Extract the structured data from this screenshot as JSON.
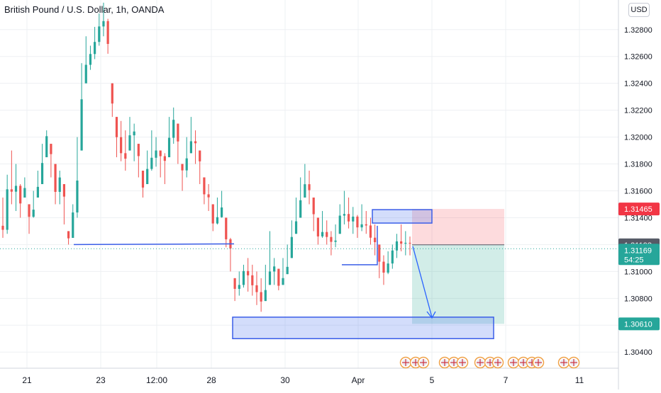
{
  "header": {
    "symbol_title": "British Pound / U.S. Dollar, 1h, OANDA",
    "currency_button": "USD"
  },
  "colors": {
    "up": "#26a69a",
    "down": "#ef5350",
    "box_blue": "#3b5ee8",
    "box_fill": "rgba(80,120,240,0.25)",
    "stop_zone": "rgba(242,54,69,0.18)",
    "target_zone": "rgba(8,153,129,0.18)",
    "current_tag": "#26a69a",
    "stop_tag": "#f23645",
    "entry_tag": "#555a66"
  },
  "chart_data": {
    "type": "candlestick",
    "ylim": [
      1.3028,
      1.3302
    ],
    "y_ticks": [
      "1.30400",
      "1.30600",
      "1.30800",
      "1.31000",
      "1.31200",
      "1.31400",
      "1.31600",
      "1.31800",
      "1.32000",
      "1.32200",
      "1.32400",
      "1.32600",
      "1.32800"
    ],
    "x_ticks": [
      "21",
      "23",
      "12:00",
      "28",
      "30",
      "Apr",
      "5",
      "7",
      "11"
    ],
    "price_tags": {
      "stop": "1.31465",
      "entry": "1.31198",
      "current": "1.31169",
      "countdown": "54:25",
      "target": "1.30610"
    },
    "path_points": [
      [
        1.3155,
        1.3125
      ],
      [
        1.3172,
        1.3128
      ],
      [
        1.319,
        1.315
      ],
      [
        1.318,
        1.3145
      ],
      [
        1.3165,
        1.314
      ],
      [
        1.317,
        1.3155
      ],
      [
        1.315,
        1.3128
      ],
      [
        1.316,
        1.314
      ],
      [
        1.3175,
        1.3155
      ],
      [
        1.3195,
        1.3165
      ],
      [
        1.3205,
        1.3185
      ],
      [
        1.3195,
        1.317
      ],
      [
        1.318,
        1.315
      ],
      [
        1.3175,
        1.315
      ],
      [
        1.3165,
        1.3135
      ],
      [
        1.313,
        1.312
      ],
      [
        1.315,
        1.3125
      ],
      [
        1.32,
        1.314
      ],
      [
        1.3255,
        1.319
      ],
      [
        1.3275,
        1.324
      ],
      [
        1.3268,
        1.325
      ],
      [
        1.3282,
        1.3258
      ],
      [
        1.3292,
        1.3268
      ],
      [
        1.33,
        1.3275
      ],
      [
        1.3288,
        1.3262
      ],
      [
        1.324,
        1.3215
      ],
      [
        1.3215,
        1.3185
      ],
      [
        1.3212,
        1.3182
      ],
      [
        1.3205,
        1.3175
      ],
      [
        1.3215,
        1.319
      ],
      [
        1.321,
        1.3182
      ],
      [
        1.3195,
        1.317
      ],
      [
        1.3175,
        1.3155
      ],
      [
        1.319,
        1.3165
      ],
      [
        1.3205,
        1.3175
      ],
      [
        1.32,
        1.3178
      ],
      [
        1.319,
        1.317
      ],
      [
        1.3188,
        1.3165
      ],
      [
        1.3215,
        1.3185
      ],
      [
        1.3222,
        1.3195
      ],
      [
        1.321,
        1.318
      ],
      [
        1.318,
        1.316
      ],
      [
        1.32,
        1.317
      ],
      [
        1.3215,
        1.3188
      ],
      [
        1.3205,
        1.318
      ],
      [
        1.319,
        1.3165
      ],
      [
        1.317,
        1.315
      ],
      [
        1.3165,
        1.3145
      ],
      [
        1.315,
        1.313
      ],
      [
        1.3155,
        1.3135
      ],
      [
        1.316,
        1.314
      ],
      [
        1.314,
        1.3118
      ],
      [
        1.3125,
        1.31
      ],
      [
        1.3095,
        1.3078
      ],
      [
        1.31,
        1.3082
      ],
      [
        1.3105,
        1.3088
      ],
      [
        1.311,
        1.3085
      ],
      [
        1.3105,
        1.3082
      ],
      [
        1.31,
        1.3075
      ],
      [
        1.3095,
        1.307
      ],
      [
        1.3105,
        1.3078
      ],
      [
        1.313,
        1.309
      ],
      [
        1.311,
        1.309
      ],
      [
        1.3102,
        1.3086
      ],
      [
        1.311,
        1.309
      ],
      [
        1.312,
        1.3098
      ],
      [
        1.3138,
        1.311
      ],
      [
        1.3155,
        1.3128
      ],
      [
        1.317,
        1.314
      ],
      [
        1.318,
        1.3155
      ],
      [
        1.3175,
        1.315
      ],
      [
        1.3155,
        1.313
      ],
      [
        1.314,
        1.312
      ],
      [
        1.3145,
        1.3125
      ],
      [
        1.3138,
        1.312
      ],
      [
        1.313,
        1.3112
      ],
      [
        1.3135,
        1.3118
      ],
      [
        1.315,
        1.3128
      ],
      [
        1.316,
        1.3135
      ],
      [
        1.3155,
        1.3132
      ],
      [
        1.3148,
        1.3128
      ],
      [
        1.3142,
        1.3125
      ],
      [
        1.315,
        1.313
      ],
      [
        1.3145,
        1.3128
      ],
      [
        1.314,
        1.312
      ],
      [
        1.3135,
        1.3112
      ],
      [
        1.312,
        1.3095
      ],
      [
        1.3112,
        1.309
      ],
      [
        1.3115,
        1.3098
      ],
      [
        1.312,
        1.3102
      ],
      [
        1.3128,
        1.311
      ],
      [
        1.3135,
        1.3115
      ],
      [
        1.313,
        1.3112
      ],
      [
        1.3126,
        1.3112
      ]
    ],
    "annotations": {
      "horizontal_lines": [
        {
          "y": 1.312,
          "x_from_tick": "21",
          "x_to_tick": "28"
        },
        {
          "y": 1.3105,
          "x_from_tick": "30",
          "x_to_tick": "Apr"
        }
      ],
      "zones": [
        {
          "name": "supply-zone",
          "y_high": 1.3146,
          "y_low": 1.3136
        },
        {
          "name": "demand-zone",
          "y_high": 1.3066,
          "y_low": 1.305
        }
      ],
      "position": {
        "stop": 1.31465,
        "entry": 1.31198,
        "target": 1.3061
      }
    }
  }
}
